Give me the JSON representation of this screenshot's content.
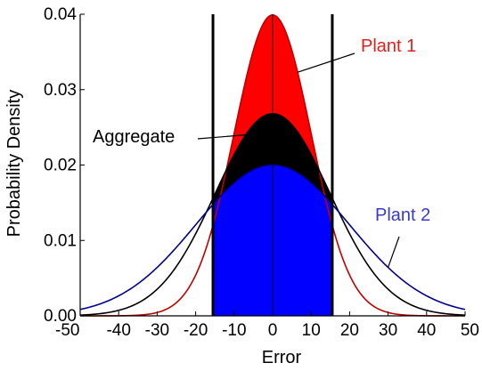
{
  "chart_data": {
    "type": "line",
    "title": "",
    "xlabel": "Error",
    "ylabel": "Probability Density",
    "xlim": [
      -50,
      50
    ],
    "ylim": [
      0,
      0.04
    ],
    "x_ticks": [
      -50,
      -40,
      -30,
      -20,
      -10,
      0,
      10,
      20,
      30,
      40,
      50
    ],
    "x_tick_labels": [
      "-50",
      "-40",
      "-30",
      "-20",
      "-10",
      "0",
      "10",
      "20",
      "30",
      "40",
      "50"
    ],
    "y_ticks": [
      0,
      0.01,
      0.02,
      0.03,
      0.04
    ],
    "y_tick_labels": [
      "0.00",
      "0.01",
      "0.02",
      "0.03",
      "0.04"
    ],
    "grid": false,
    "vertical_lines": [
      -15.5,
      15.5
    ],
    "shaded_interval": [
      -15.5,
      15.5
    ],
    "series": [
      {
        "name": "Plant 1",
        "distribution": "normal",
        "mean": 0,
        "sd": 10,
        "peak": 0.0399,
        "color": "#ff0000",
        "line_color": "#c00000"
      },
      {
        "name": "Aggregate",
        "distribution": "normal",
        "mean": 0,
        "sd": 14.9,
        "peak": 0.0268,
        "color": "#000000",
        "line_color": "#000000"
      },
      {
        "name": "Plant 2",
        "distribution": "normal",
        "mean": 0,
        "sd": 19.9,
        "peak": 0.02,
        "color": "#0000ff",
        "line_color": "#00008b"
      }
    ],
    "annotations": [
      {
        "text": "Plant 1",
        "color": "#e0201b"
      },
      {
        "text": "Aggregate",
        "color": "#000000"
      },
      {
        "text": "Plant 2",
        "color": "#3a3ac8"
      }
    ]
  }
}
